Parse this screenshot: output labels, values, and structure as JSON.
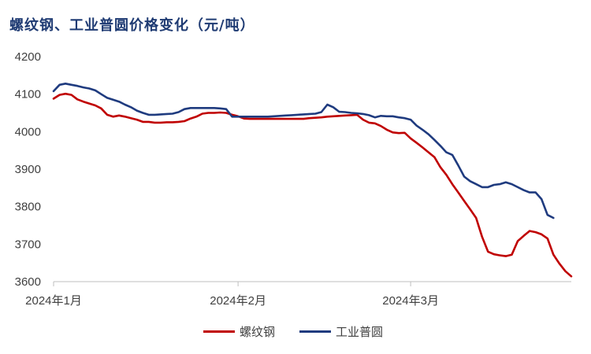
{
  "title": "螺纹钢、工业普圆价格变化（元/吨）",
  "chart_data": {
    "type": "line",
    "ylim": [
      3600,
      4200
    ],
    "y_ticks": [
      3600,
      3700,
      3800,
      3900,
      4000,
      4100,
      4200
    ],
    "x_ticks": [
      "2024年1月",
      "2024年2月",
      "2024年3月"
    ],
    "x_tick_index": [
      0,
      31,
      60
    ],
    "grid": false,
    "legend_position": "bottom",
    "series": [
      {
        "name": "螺纹钢",
        "color": "#c00000",
        "values": [
          4088,
          4098,
          4101,
          4098,
          4086,
          4080,
          4075,
          4070,
          4062,
          4045,
          4040,
          4043,
          4040,
          4036,
          4032,
          4026,
          4026,
          4024,
          4024,
          4025,
          4025,
          4026,
          4028,
          4035,
          4040,
          4048,
          4050,
          4050,
          4051,
          4050,
          4045,
          4041,
          4035,
          4034,
          4034,
          4034,
          4034,
          4034,
          4034,
          4034,
          4034,
          4034,
          4034,
          4036,
          4037,
          4038,
          4040,
          4041,
          4042,
          4043,
          4044,
          4045,
          4032,
          4024,
          4022,
          4015,
          4005,
          3998,
          3996,
          3997,
          3982,
          3970,
          3958,
          3945,
          3932,
          3905,
          3885,
          3860,
          3838,
          3815,
          3793,
          3770,
          3720,
          3680,
          3673,
          3670,
          3668,
          3672,
          3708,
          3722,
          3735,
          3732,
          3726,
          3715,
          3672,
          3648,
          3628,
          3614
        ]
      },
      {
        "name": "工业普圆",
        "color": "#1f3b7f",
        "values": [
          4108,
          4125,
          4128,
          4125,
          4122,
          4118,
          4115,
          4110,
          4100,
          4090,
          4085,
          4080,
          4072,
          4065,
          4056,
          4050,
          4045,
          4045,
          4046,
          4047,
          4048,
          4052,
          4060,
          4063,
          4063,
          4063,
          4063,
          4063,
          4062,
          4060,
          4040,
          4040,
          4040,
          4040,
          4040,
          4040,
          4040,
          4041,
          4042,
          4043,
          4044,
          4045,
          4046,
          4047,
          4048,
          4052,
          4072,
          4065,
          4053,
          4052,
          4050,
          4049,
          4047,
          4044,
          4038,
          4042,
          4041,
          4041,
          4038,
          4036,
          4032,
          4016,
          4005,
          3993,
          3978,
          3962,
          3945,
          3938,
          3910,
          3880,
          3868,
          3860,
          3852,
          3852,
          3858,
          3860,
          3865,
          3860,
          3852,
          3844,
          3838,
          3838,
          3820,
          3778,
          3770
        ]
      }
    ]
  }
}
